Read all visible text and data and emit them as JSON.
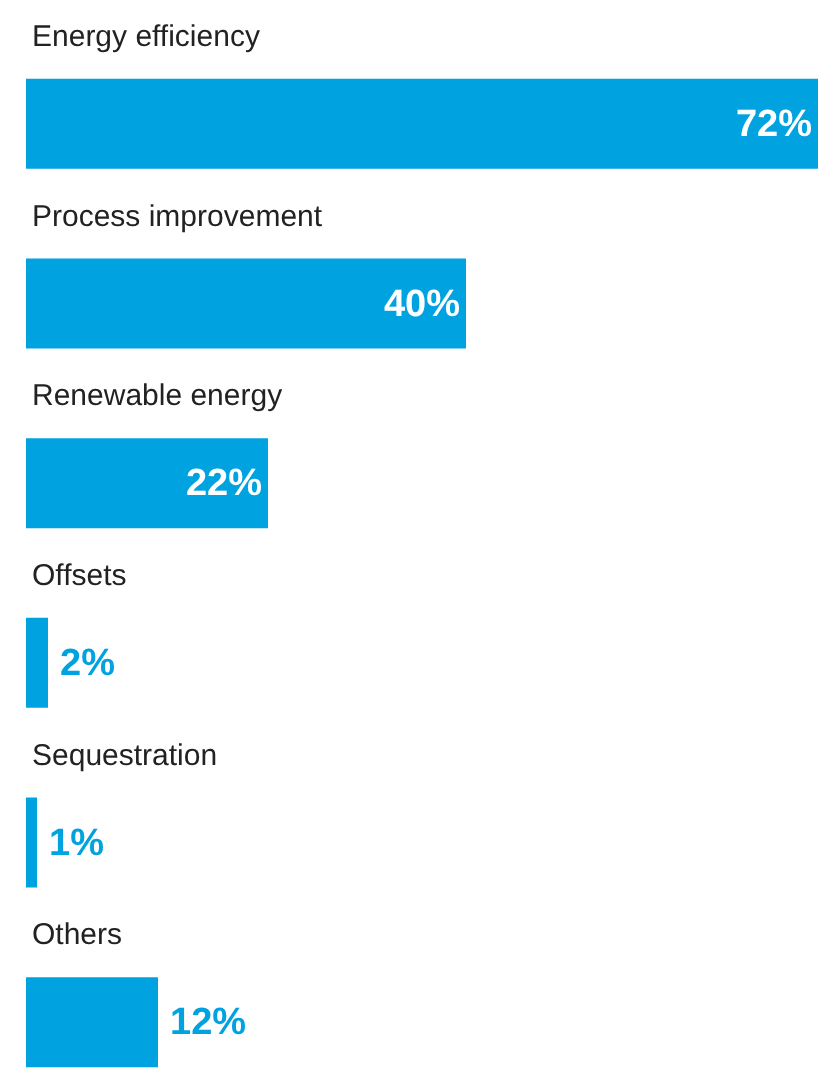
{
  "chart_data": {
    "type": "bar",
    "orientation": "horizontal",
    "categories": [
      "Energy efficiency",
      "Process improvement",
      "Renewable energy",
      "Offsets",
      "Sequestration",
      "Others"
    ],
    "values": [
      72,
      40,
      22,
      2,
      1,
      12
    ],
    "value_labels": [
      "72%",
      "40%",
      "22%",
      "2%",
      "1%",
      "12%"
    ],
    "color": "#00a3e0"
  }
}
